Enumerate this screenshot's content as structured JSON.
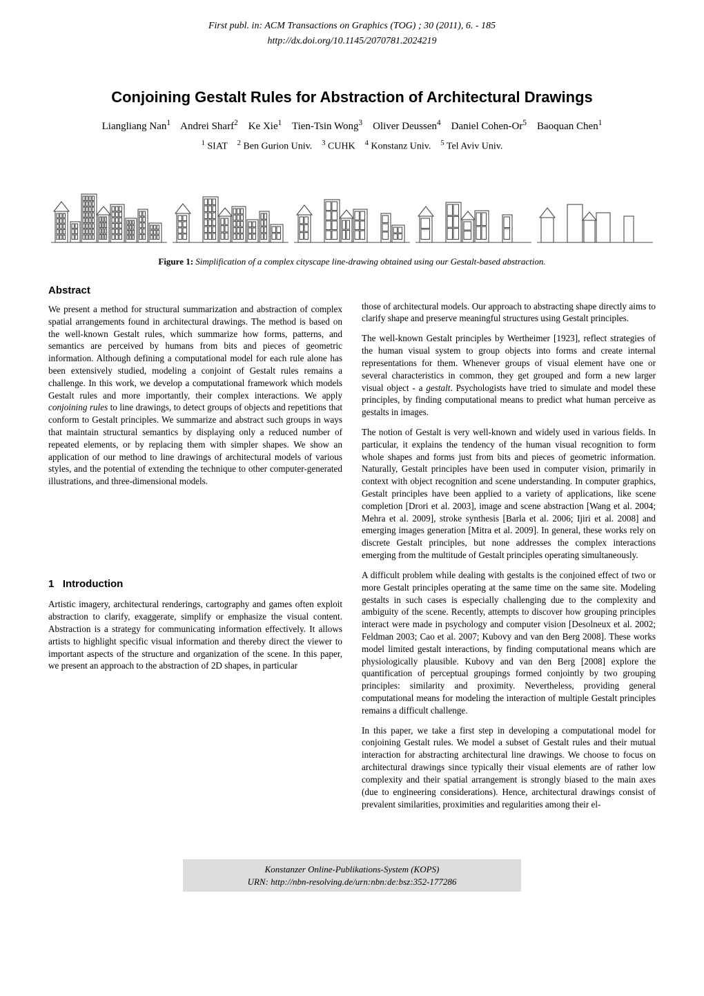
{
  "pub_header": "First publ. in: ACM Transactions on Graphics (TOG) ; 30 (2011), 6. - 185",
  "pub_doi": "http://dx.doi.org/10.1145/2070781.2024219",
  "title": "Conjoining Gestalt Rules for Abstraction of Architectural Drawings",
  "authors_html": "Liangliang Nan<sup>1</sup> &nbsp;&nbsp; Andrei Sharf<sup>2</sup> &nbsp;&nbsp; Ke Xie<sup>1</sup> &nbsp;&nbsp; Tien-Tsin Wong<sup>3</sup> &nbsp;&nbsp; Oliver Deussen<sup>4</sup> &nbsp;&nbsp; Daniel Cohen-Or<sup>5</sup> &nbsp;&nbsp; Baoquan Chen<sup>1</sup>",
  "affiliations_html": "<sup>1</sup> SIAT &nbsp;&nbsp; <sup>2</sup> Ben Gurion Univ. &nbsp;&nbsp; <sup>3</sup> CUHK &nbsp;&nbsp; <sup>4</sup> Konstanz Univ. &nbsp;&nbsp; <sup>5</sup> Tel Aviv Univ.",
  "figure_caption_html": "<b>Figure 1:</b> <i>Simplification of a complex cityscape line-drawing obtained using our Gestalt-based abstraction.</i>",
  "abstract_heading": "Abstract",
  "abstract_body_html": "We present a method for structural summarization and abstraction of complex spatial arrangements found in architectural drawings. The method is based on the well-known Gestalt rules, which summarize how forms, patterns, and semantics are perceived by humans from bits and pieces of geometric information. Although defining a computational model for each rule alone has been extensively studied, modeling a conjoint of Gestalt rules remains a challenge. In this work, we develop a computational framework which models Gestalt rules and more importantly, their complex interactions. We apply <i>conjoining rules</i> to line drawings, to detect groups of objects and repetitions that conform to Gestalt principles. We summarize and abstract such groups in ways that maintain structural semantics by displaying only a reduced number of repeated elements, or by replacing them with simpler shapes. We show an application of our method to line drawings of architectural models of various styles, and the potential of extending the technique to other computer-generated illustrations, and three-dimensional models.",
  "intro_heading": "1&nbsp;&nbsp;&nbsp;Introduction",
  "intro_para1": "Artistic imagery, architectural renderings, cartography and games often exploit abstraction to clarify, exaggerate, simplify or emphasize the visual content. Abstraction is a strategy for communicating information effectively. It allows artists to highlight specific visual information and thereby direct the viewer to important aspects of the structure and organization of the scene. In this paper, we present an approach to the abstraction of 2D shapes, in particular",
  "right_para1": "those of architectural models. Our approach to abstracting shape directly aims to clarify shape and preserve meaningful structures using Gestalt principles.",
  "right_para2_html": "The well-known Gestalt principles by Wertheimer [1923], reflect strategies of the human visual system to group objects into forms and create internal representations for them. Whenever groups of visual element have one or several characteristics in common, they get grouped and form a new larger visual object - a <i>gestalt</i>. Psychologists have tried to simulate and model these principles, by finding computational means to predict what human perceive as gestalts in images.",
  "right_para3": "The notion of Gestalt is very well-known and widely used in various fields. In particular, it explains the tendency of the human visual recognition to form whole shapes and forms just from bits and pieces of geometric information. Naturally, Gestalt principles have been used in computer vision, primarily in context with object recognition and scene understanding. In computer graphics, Gestalt principles have been applied to a variety of applications, like scene completion [Drori et al. 2003], image and scene abstraction [Wang et al. 2004; Mehra et al. 2009], stroke synthesis [Barla et al. 2006; Ijiri et al. 2008] and emerging images generation [Mitra et al. 2009]. In general, these works rely on discrete Gestalt principles, but none addresses the complex interactions emerging from the multitude of Gestalt principles operating simultaneously.",
  "right_para4": "A difficult problem while dealing with gestalts is the conjoined effect of two or more Gestalt principles operating at the same time on the same site. Modeling gestalts in such cases is especially challenging due to the complexity and ambiguity of the scene. Recently, attempts to discover how grouping principles interact were made in psychology and computer vision [Desolneux et al. 2002; Feldman 2003; Cao et al. 2007; Kubovy and van den Berg 2008]. These works model limited gestalt interactions, by finding computational means which are physiologically plausible. Kubovy and van den Berg [2008] explore the quantification of perceptual groupings formed conjointly by two grouping principles: similarity and proximity. Nevertheless, providing general computational means for modeling the interaction of multiple Gestalt principles remains a difficult challenge.",
  "right_para5": "In this paper, we take a first step in developing a computational model for conjoining Gestalt rules. We model a subset of Gestalt rules and their mutual interaction for abstracting architectural line drawings. We choose to focus on architectural drawings since typically their visual elements are of rather low complexity and their spatial arrangement is strongly biased to the main axes (due to engineering considerations). Hence, architectural drawings consist of prevalent similarities, proximities and regularities among their el-",
  "footer_line1": "Konstanzer Online-Publikations-System (KOPS)",
  "footer_line2": "URN: http://nbn-resolving.de/urn:nbn:de:bsz:352-177286",
  "figure": {
    "stroke": "#4a4a4a",
    "stroke_width": 1.1,
    "panels": [
      {
        "complexity": 1.0
      },
      {
        "complexity": 0.8
      },
      {
        "complexity": 0.6
      },
      {
        "complexity": 0.45
      },
      {
        "complexity": 0.3
      }
    ]
  }
}
